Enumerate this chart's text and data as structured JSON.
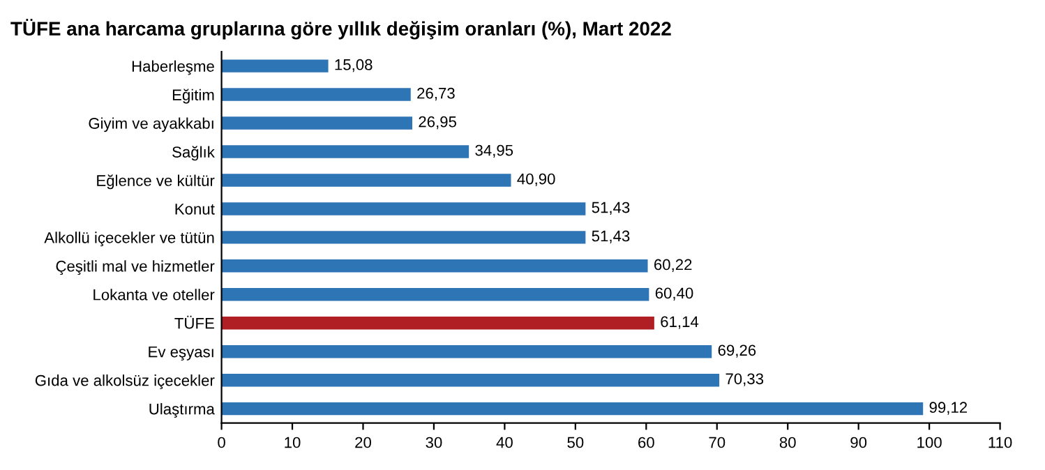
{
  "chart_data": {
    "type": "bar",
    "orientation": "horizontal",
    "title": "TÜFE ana harcama gruplarına göre yıllık değişim oranları (%), Mart 2022",
    "categories": [
      "Haberleşme",
      "Eğitim",
      "Giyim ve ayakkabı",
      "Sağlık",
      "Eğlence ve kültür",
      "Konut",
      "Alkollü içecekler ve tütün",
      "Çeşitli mal ve hizmetler",
      "Lokanta ve oteller",
      "TÜFE",
      "Ev eşyası",
      "Gıda ve alkolsüz içecekler",
      "Ulaştırma"
    ],
    "values": [
      15.08,
      26.73,
      26.95,
      34.95,
      40.9,
      51.43,
      51.43,
      60.22,
      60.4,
      61.14,
      69.26,
      70.33,
      99.12
    ],
    "value_labels": [
      "15,08",
      "26,73",
      "26,95",
      "34,95",
      "40,90",
      "51,43",
      "51,43",
      "60,22",
      "60,40",
      "61,14",
      "69,26",
      "70,33",
      "99,12"
    ],
    "colors": [
      "#2e75b6",
      "#2e75b6",
      "#2e75b6",
      "#2e75b6",
      "#2e75b6",
      "#2e75b6",
      "#2e75b6",
      "#2e75b6",
      "#2e75b6",
      "#b01f24",
      "#2e75b6",
      "#2e75b6",
      "#2e75b6"
    ],
    "xlim": [
      0,
      110
    ],
    "xticks": [
      0,
      10,
      20,
      30,
      40,
      50,
      60,
      70,
      80,
      90,
      100,
      110
    ],
    "grid": false,
    "legend": false
  }
}
